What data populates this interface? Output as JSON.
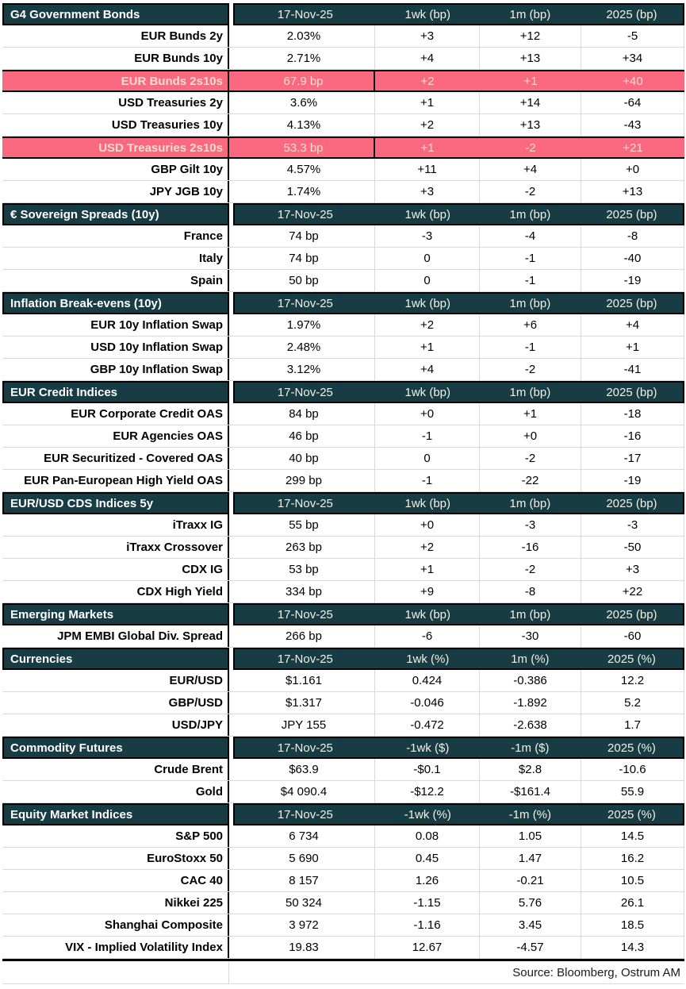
{
  "colors": {
    "teal": "#183C43",
    "pink": "#FA6980",
    "pink_text": "#F8DCD0",
    "header_text": "#F3F0E4",
    "grid": "#D9D9D9"
  },
  "chart_data": {
    "type": "table",
    "source": "Source: Bloomberg, Ostrum AM",
    "sections": [
      {
        "title": "G4 Government Bonds",
        "columns": [
          "17-Nov-25",
          "1wk (bp)",
          "1m (bp)",
          "2025 (bp)"
        ],
        "rows": [
          {
            "label": "EUR Bunds 2y",
            "values": [
              "2.03%",
              "+3",
              "+12",
              "-5"
            ],
            "highlight": false
          },
          {
            "label": "EUR Bunds 10y",
            "values": [
              "2.71%",
              "+4",
              "+13",
              "+34"
            ],
            "highlight": false
          },
          {
            "label": "EUR Bunds 2s10s",
            "values": [
              "67.9 bp",
              "+2",
              "+1",
              "+40"
            ],
            "highlight": true
          },
          {
            "label": "USD Treasuries 2y",
            "values": [
              "3.6%",
              "+1",
              "+14",
              "-64"
            ],
            "highlight": false
          },
          {
            "label": "USD Treasuries 10y",
            "values": [
              "4.13%",
              "+2",
              "+13",
              "-43"
            ],
            "highlight": false
          },
          {
            "label": "USD Treasuries 2s10s",
            "values": [
              "53.3 bp",
              "+1",
              "-2",
              "+21"
            ],
            "highlight": true
          },
          {
            "label": "GBP Gilt 10y",
            "values": [
              "4.57%",
              "+11",
              "+4",
              "+0"
            ],
            "highlight": false
          },
          {
            "label": "JPY JGB  10y",
            "values": [
              "1.74%",
              "+3",
              "-2",
              "+13"
            ],
            "highlight": false
          }
        ]
      },
      {
        "title": "€ Sovereign Spreads (10y)",
        "columns": [
          "17-Nov-25",
          "1wk (bp)",
          "1m (bp)",
          "2025 (bp)"
        ],
        "rows": [
          {
            "label": "France",
            "values": [
              "74 bp",
              "-3",
              "-4",
              "-8"
            ],
            "highlight": false
          },
          {
            "label": "Italy",
            "values": [
              "74 bp",
              "0",
              "-1",
              "-40"
            ],
            "highlight": false
          },
          {
            "label": "Spain",
            "values": [
              "50 bp",
              "0",
              "-1",
              "-19"
            ],
            "highlight": false
          }
        ]
      },
      {
        "title": "Inflation Break-evens (10y)",
        "columns": [
          "17-Nov-25",
          "1wk (bp)",
          "1m (bp)",
          "2025 (bp)"
        ],
        "rows": [
          {
            "label": "EUR 10y Inflation Swap",
            "values": [
              "1.97%",
              "+2",
              "+6",
              "+4"
            ],
            "highlight": false
          },
          {
            "label": "USD 10y Inflation Swap",
            "values": [
              "2.48%",
              "+1",
              "-1",
              "+1"
            ],
            "highlight": false
          },
          {
            "label": "GBP 10y Inflation Swap",
            "values": [
              "3.12%",
              "+4",
              "-2",
              "-41"
            ],
            "highlight": false
          }
        ]
      },
      {
        "title": "EUR Credit Indices",
        "columns": [
          "17-Nov-25",
          "1wk (bp)",
          "1m (bp)",
          "2025 (bp)"
        ],
        "rows": [
          {
            "label": "EUR Corporate Credit OAS",
            "values": [
              "84 bp",
              "+0",
              "+1",
              "-18"
            ],
            "highlight": false
          },
          {
            "label": "EUR Agencies OAS",
            "values": [
              "46 bp",
              "-1",
              "+0",
              "-16"
            ],
            "highlight": false
          },
          {
            "label": "EUR Securitized - Covered OAS",
            "values": [
              "40 bp",
              "0",
              "-2",
              "-17"
            ],
            "highlight": false
          },
          {
            "label": "EUR Pan-European High Yield OAS",
            "values": [
              "299 bp",
              "-1",
              "-22",
              "-19"
            ],
            "highlight": false
          }
        ]
      },
      {
        "title": "EUR/USD CDS Indices 5y",
        "columns": [
          "17-Nov-25",
          "1wk (bp)",
          "1m (bp)",
          "2025 (bp)"
        ],
        "rows": [
          {
            "label": "iTraxx IG",
            "values": [
              "55 bp",
              "+0",
              "-3",
              "-3"
            ],
            "highlight": false
          },
          {
            "label": "iTraxx Crossover",
            "values": [
              "263 bp",
              "+2",
              "-16",
              "-50"
            ],
            "highlight": false
          },
          {
            "label": "CDX IG",
            "values": [
              "53 bp",
              "+1",
              "-2",
              "+3"
            ],
            "highlight": false
          },
          {
            "label": "CDX High Yield",
            "values": [
              "334 bp",
              "+9",
              "-8",
              "+22"
            ],
            "highlight": false
          }
        ]
      },
      {
        "title": "Emerging Markets",
        "columns": [
          "17-Nov-25",
          "1wk (bp)",
          "1m (bp)",
          "2025 (bp)"
        ],
        "rows": [
          {
            "label": "JPM EMBI Global Div. Spread",
            "values": [
              "266 bp",
              "-6",
              "-30",
              "-60"
            ],
            "highlight": false
          }
        ]
      },
      {
        "title": "Currencies",
        "columns": [
          "17-Nov-25",
          "1wk (%)",
          "1m (%)",
          "2025 (%)"
        ],
        "rows": [
          {
            "label": "EUR/USD",
            "values": [
              "$1.161",
              "0.424",
              "-0.386",
              "12.2"
            ],
            "highlight": false
          },
          {
            "label": "GBP/USD",
            "values": [
              "$1.317",
              "-0.046",
              "-1.892",
              "5.2"
            ],
            "highlight": false
          },
          {
            "label": "USD/JPY",
            "values": [
              "JPY 155",
              "-0.472",
              "-2.638",
              "1.7"
            ],
            "highlight": false
          }
        ]
      },
      {
        "title": "Commodity Futures",
        "columns": [
          "17-Nov-25",
          "-1wk ($)",
          "-1m ($)",
          "2025 (%)"
        ],
        "rows": [
          {
            "label": "Crude Brent",
            "values": [
              "$63.9",
              "-$0.1",
              "$2.8",
              "-10.6"
            ],
            "highlight": false
          },
          {
            "label": "Gold",
            "values": [
              "$4 090.4",
              "-$12.2",
              "-$161.4",
              "55.9"
            ],
            "highlight": false
          }
        ]
      },
      {
        "title": "Equity Market Indices",
        "columns": [
          "17-Nov-25",
          "-1wk (%)",
          "-1m (%)",
          "2025 (%)"
        ],
        "rows": [
          {
            "label": "S&P 500",
            "values": [
              "6 734",
              "0.08",
              "1.05",
              "14.5"
            ],
            "highlight": false
          },
          {
            "label": "EuroStoxx 50",
            "values": [
              "5 690",
              "0.45",
              "1.47",
              "16.2"
            ],
            "highlight": false
          },
          {
            "label": "CAC 40",
            "values": [
              "8 157",
              "1.26",
              "-0.21",
              "10.5"
            ],
            "highlight": false
          },
          {
            "label": "Nikkei 225",
            "values": [
              "50 324",
              "-1.15",
              "5.76",
              "26.1"
            ],
            "highlight": false
          },
          {
            "label": "Shanghai Composite",
            "values": [
              "3 972",
              "-1.16",
              "3.45",
              "18.5"
            ],
            "highlight": false
          },
          {
            "label": "VIX - Implied Volatility Index",
            "values": [
              "19.83",
              "12.67",
              "-4.57",
              "14.3"
            ],
            "highlight": false
          }
        ]
      }
    ]
  }
}
